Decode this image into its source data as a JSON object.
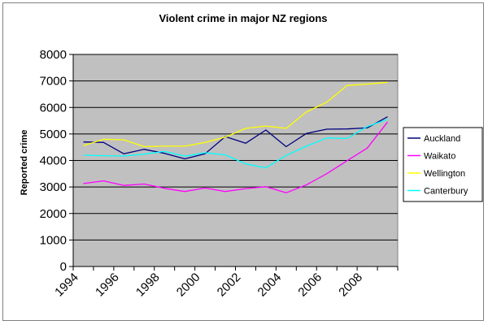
{
  "chart_data": {
    "type": "line",
    "title": "Violent crime in major NZ regions",
    "xlabel": "",
    "ylabel": "Reported crime",
    "x": [
      1994.5,
      1995.5,
      1996.5,
      1997.5,
      1998.5,
      1999.5,
      2000.5,
      2001.5,
      2002.5,
      2003.5,
      2004.5,
      2005.5,
      2006.5,
      2007.5,
      2008.5,
      2009.5
    ],
    "xlim": [
      1994,
      2010
    ],
    "x_ticks": [
      "1994",
      "1996",
      "1998",
      "2000",
      "2002",
      "2004",
      "2006",
      "2008"
    ],
    "ylim": [
      0,
      8000
    ],
    "y_ticks": [
      "0",
      "1000",
      "2000",
      "3000",
      "4000",
      "5000",
      "6000",
      "7000",
      "8000"
    ],
    "grid": true,
    "plot_background": "#c0c0c0",
    "legend_position": "right",
    "series": [
      {
        "name": "Auckland",
        "color": "#000080",
        "values": [
          4700,
          4680,
          4250,
          4420,
          4270,
          4060,
          4250,
          4900,
          4650,
          5150,
          4520,
          5020,
          5180,
          5190,
          5230,
          5650
        ]
      },
      {
        "name": "Waikato",
        "color": "#ff00ff",
        "values": [
          3130,
          3230,
          3060,
          3110,
          2950,
          2830,
          2960,
          2830,
          2940,
          3010,
          2780,
          3080,
          3500,
          3990,
          4470,
          5450
        ]
      },
      {
        "name": "Wellington",
        "color": "#ffff00",
        "values": [
          4560,
          4800,
          4780,
          4520,
          4540,
          4540,
          4680,
          4880,
          5210,
          5300,
          5210,
          5830,
          6200,
          6830,
          6880,
          6950
        ]
      },
      {
        "name": "Canterbury",
        "color": "#00ffff",
        "values": [
          4200,
          4180,
          4170,
          4240,
          4340,
          4160,
          4290,
          4210,
          3870,
          3720,
          4190,
          4540,
          4850,
          4830,
          5280,
          5550
        ]
      }
    ]
  }
}
